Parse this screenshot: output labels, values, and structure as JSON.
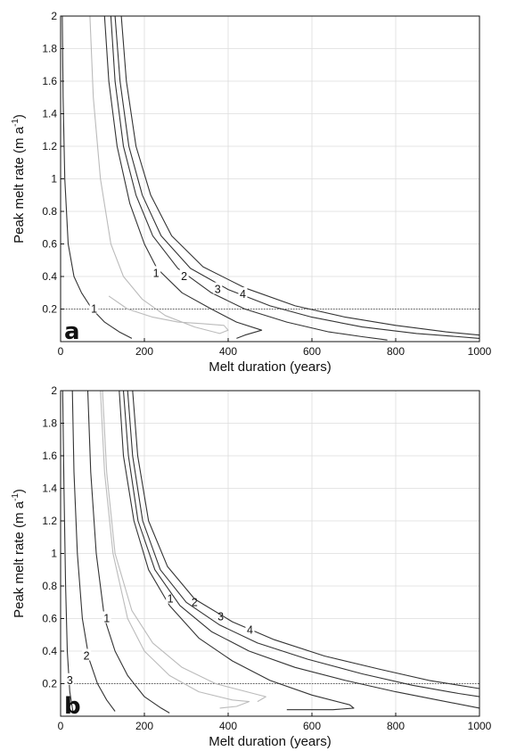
{
  "chart_data": [
    {
      "type": "line",
      "panel_label": "a",
      "xlabel": "Melt duration (years)",
      "ylabel_main": "Peak melt rate (m a",
      "ylabel_sup": "-1",
      "ylabel_end": ")",
      "xlim": [
        0,
        1000
      ],
      "ylim": [
        0,
        2
      ],
      "xticks": [
        0,
        200,
        400,
        600,
        800,
        1000
      ],
      "yticks": [
        0.2,
        0.4,
        0.6,
        0.8,
        1,
        1.2,
        1.4,
        1.6,
        1.8,
        2
      ],
      "xtick_labels": [
        "0",
        "200",
        "400",
        "600",
        "800",
        "1000"
      ],
      "ytick_labels": [
        "0.2",
        "0.4",
        "0.6",
        "0.8",
        "1",
        "1.2",
        "1.4",
        "1.6",
        "1.8",
        "2"
      ],
      "grid": true,
      "reference_line_y": 0.2,
      "series": [
        {
          "color": "#333333",
          "label": "1",
          "label_at": [
            80,
            0.2
          ],
          "points": [
            [
              4,
              2.0
            ],
            [
              6,
              1.5
            ],
            [
              10,
              1.0
            ],
            [
              18,
              0.6
            ],
            [
              32,
              0.4
            ],
            [
              50,
              0.3
            ],
            [
              75,
              0.2
            ],
            [
              105,
              0.12
            ],
            [
              140,
              0.06
            ],
            [
              170,
              0.02
            ]
          ]
        },
        {
          "color": "#bbbbbb",
          "points": [
            [
              70,
              2.0
            ],
            [
              78,
              1.5
            ],
            [
              95,
              1.0
            ],
            [
              120,
              0.6
            ],
            [
              150,
              0.4
            ],
            [
              195,
              0.26
            ],
            [
              250,
              0.16
            ],
            [
              320,
              0.09
            ],
            [
              380,
              0.05
            ],
            [
              400,
              0.07
            ],
            [
              390,
              0.1
            ],
            [
              340,
              0.11
            ],
            [
              280,
              0.12
            ],
            [
              220,
              0.15
            ],
            [
              160,
              0.2
            ],
            [
              115,
              0.28
            ]
          ]
        },
        {
          "color": "#333333",
          "label": "1",
          "label_at": [
            228,
            0.42
          ],
          "points": [
            [
              105,
              2.0
            ],
            [
              115,
              1.6
            ],
            [
              135,
              1.2
            ],
            [
              165,
              0.85
            ],
            [
              200,
              0.6
            ],
            [
              230,
              0.45
            ],
            [
              290,
              0.3
            ],
            [
              360,
              0.2
            ],
            [
              420,
              0.12
            ],
            [
              480,
              0.07
            ],
            [
              440,
              0.04
            ],
            [
              420,
              0.02
            ]
          ]
        },
        {
          "color": "#333333",
          "label": "2",
          "label_at": [
            295,
            0.4
          ],
          "points": [
            [
              120,
              2.0
            ],
            [
              130,
              1.6
            ],
            [
              150,
              1.2
            ],
            [
              180,
              0.9
            ],
            [
              220,
              0.65
            ],
            [
              280,
              0.45
            ],
            [
              360,
              0.3
            ],
            [
              440,
              0.2
            ],
            [
              540,
              0.12
            ],
            [
              640,
              0.06
            ],
            [
              720,
              0.03
            ],
            [
              780,
              0.01
            ]
          ]
        },
        {
          "color": "#333333",
          "label": "3",
          "label_at": [
            375,
            0.32
          ],
          "points": [
            [
              130,
              2.0
            ],
            [
              142,
              1.6
            ],
            [
              163,
              1.2
            ],
            [
              195,
              0.9
            ],
            [
              240,
              0.65
            ],
            [
              310,
              0.45
            ],
            [
              400,
              0.32
            ],
            [
              500,
              0.22
            ],
            [
              600,
              0.15
            ],
            [
              720,
              0.09
            ],
            [
              850,
              0.05
            ],
            [
              950,
              0.03
            ],
            [
              1000,
              0.02
            ]
          ]
        },
        {
          "color": "#333333",
          "label": "4",
          "label_at": [
            435,
            0.29
          ],
          "points": [
            [
              145,
              2.0
            ],
            [
              157,
              1.6
            ],
            [
              180,
              1.2
            ],
            [
              215,
              0.9
            ],
            [
              265,
              0.65
            ],
            [
              340,
              0.46
            ],
            [
              440,
              0.33
            ],
            [
              560,
              0.22
            ],
            [
              680,
              0.15
            ],
            [
              800,
              0.1
            ],
            [
              920,
              0.06
            ],
            [
              1000,
              0.04
            ]
          ]
        }
      ]
    },
    {
      "type": "line",
      "panel_label": "b",
      "xlabel": "Melt duration (years)",
      "ylabel_main": "Peak melt rate (m a",
      "ylabel_sup": "-1",
      "ylabel_end": ")",
      "xlim": [
        0,
        1000
      ],
      "ylim": [
        0,
        2
      ],
      "xticks": [
        0,
        200,
        400,
        600,
        800,
        1000
      ],
      "yticks": [
        0.2,
        0.4,
        0.6,
        0.8,
        1,
        1.2,
        1.4,
        1.6,
        1.8,
        2
      ],
      "xtick_labels": [
        "0",
        "200",
        "400",
        "600",
        "800",
        "1000"
      ],
      "ytick_labels": [
        "0.2",
        "0.4",
        "0.6",
        "0.8",
        "1",
        "1.2",
        "1.4",
        "1.6",
        "1.8",
        "2"
      ],
      "grid": true,
      "reference_line_y": 0.2,
      "series": [
        {
          "color": "#333333",
          "label": "3",
          "label_at": [
            22,
            0.22
          ],
          "points": [
            [
              5,
              2.0
            ],
            [
              8,
              1.4
            ],
            [
              12,
              0.8
            ],
            [
              16,
              0.4
            ],
            [
              22,
              0.15
            ],
            [
              30,
              0.02
            ]
          ]
        },
        {
          "color": "#333333",
          "label": "2",
          "label_at": [
            62,
            0.37
          ],
          "points": [
            [
              28,
              2.0
            ],
            [
              32,
              1.5
            ],
            [
              40,
              1.0
            ],
            [
              52,
              0.6
            ],
            [
              68,
              0.35
            ],
            [
              88,
              0.2
            ],
            [
              110,
              0.1
            ],
            [
              130,
              0.03
            ]
          ]
        },
        {
          "color": "#333333",
          "label": "1",
          "label_at": [
            110,
            0.6
          ],
          "points": [
            [
              65,
              2.0
            ],
            [
              72,
              1.5
            ],
            [
              85,
              1.0
            ],
            [
              105,
              0.6
            ],
            [
              130,
              0.4
            ],
            [
              160,
              0.25
            ],
            [
              200,
              0.12
            ],
            [
              240,
              0.05
            ],
            [
              260,
              0.02
            ]
          ]
        },
        {
          "color": "#bbbbbb",
          "points": [
            [
              95,
              2.0
            ],
            [
              105,
              1.5
            ],
            [
              125,
              1.0
            ],
            [
              160,
              0.6
            ],
            [
              200,
              0.4
            ],
            [
              260,
              0.25
            ],
            [
              330,
              0.15
            ],
            [
              410,
              0.1
            ],
            [
              450,
              0.09
            ],
            [
              420,
              0.06
            ],
            [
              380,
              0.05
            ]
          ]
        },
        {
          "color": "#bbbbbb",
          "points": [
            [
              100,
              2.0
            ],
            [
              110,
              1.5
            ],
            [
              130,
              1.0
            ],
            [
              170,
              0.65
            ],
            [
              220,
              0.45
            ],
            [
              290,
              0.3
            ],
            [
              370,
              0.2
            ],
            [
              460,
              0.14
            ],
            [
              490,
              0.12
            ],
            [
              470,
              0.09
            ]
          ]
        },
        {
          "color": "#333333",
          "label": "1",
          "label_at": [
            262,
            0.72
          ],
          "points": [
            [
              140,
              2.0
            ],
            [
              150,
              1.6
            ],
            [
              175,
              1.2
            ],
            [
              210,
              0.9
            ],
            [
              260,
              0.68
            ],
            [
              330,
              0.48
            ],
            [
              410,
              0.34
            ],
            [
              500,
              0.22
            ],
            [
              600,
              0.13
            ],
            [
              690,
              0.07
            ],
            [
              700,
              0.05
            ],
            [
              650,
              0.04
            ],
            [
              540,
              0.04
            ]
          ]
        },
        {
          "color": "#333333",
          "label": "2",
          "label_at": [
            320,
            0.7
          ],
          "points": [
            [
              150,
              2.0
            ],
            [
              162,
              1.6
            ],
            [
              185,
              1.2
            ],
            [
              225,
              0.9
            ],
            [
              285,
              0.68
            ],
            [
              360,
              0.52
            ],
            [
              450,
              0.4
            ],
            [
              560,
              0.3
            ],
            [
              680,
              0.22
            ],
            [
              800,
              0.15
            ],
            [
              900,
              0.1
            ],
            [
              1000,
              0.05
            ]
          ]
        },
        {
          "color": "#333333",
          "label": "3",
          "label_at": [
            382,
            0.61
          ],
          "points": [
            [
              160,
              2.0
            ],
            [
              172,
              1.6
            ],
            [
              196,
              1.2
            ],
            [
              238,
              0.9
            ],
            [
              300,
              0.7
            ],
            [
              380,
              0.56
            ],
            [
              470,
              0.45
            ],
            [
              590,
              0.35
            ],
            [
              720,
              0.26
            ],
            [
              840,
              0.19
            ],
            [
              950,
              0.14
            ],
            [
              1000,
              0.12
            ]
          ]
        },
        {
          "color": "#333333",
          "label": "4",
          "label_at": [
            452,
            0.53
          ],
          "points": [
            [
              172,
              2.0
            ],
            [
              184,
              1.6
            ],
            [
              210,
              1.2
            ],
            [
              255,
              0.92
            ],
            [
              320,
              0.72
            ],
            [
              410,
              0.58
            ],
            [
              510,
              0.47
            ],
            [
              630,
              0.37
            ],
            [
              760,
              0.29
            ],
            [
              880,
              0.22
            ],
            [
              1000,
              0.17
            ]
          ]
        }
      ]
    }
  ]
}
